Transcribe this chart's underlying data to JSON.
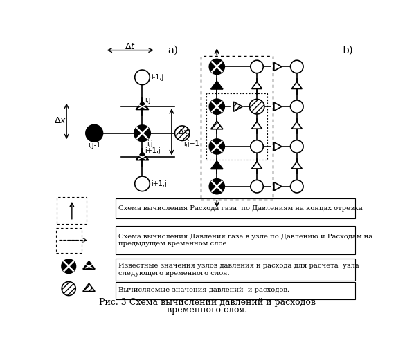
{
  "title_line1": "Рис. 3 Схема вычислений давлений и расходов",
  "title_line2": "временного слоя.",
  "label_a": "a)",
  "label_b": "b)",
  "legend_texts": [
    "Схема вычисления Расхода газа  по Давлениям на концах отрезка",
    "Схема вычисления Давления газа в узле по Давлению и Расходам на\nпредыдущем временном слое",
    "Известные значения узлов давления и расхода для расчета  узла\nследующего временного слоя.",
    "Вычисляемые значения давлений  и расходов."
  ],
  "bg_color": "#ffffff"
}
